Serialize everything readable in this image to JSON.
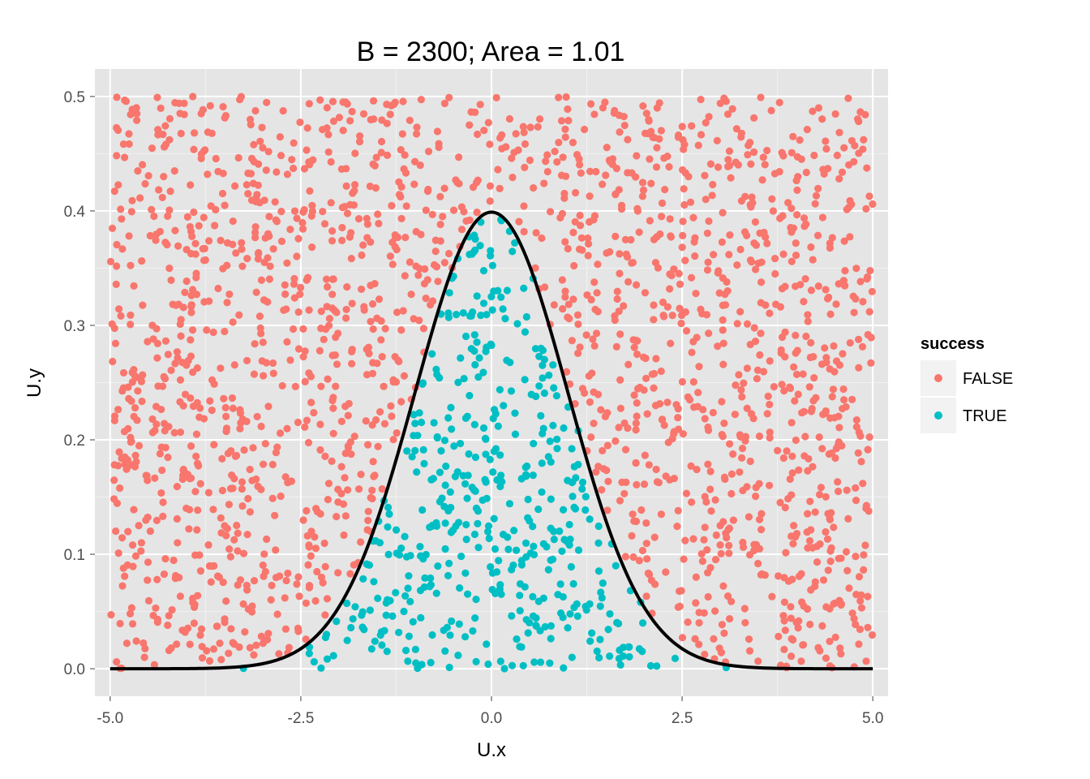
{
  "chart_data": {
    "type": "scatter",
    "title": "B = 2300; Area = 1.01",
    "xlabel": "U.x",
    "ylabel": "U.y",
    "xlim": [
      -5.2,
      5.2
    ],
    "ylim": [
      -0.024,
      0.524
    ],
    "x_ticks": [
      -5.0,
      -2.5,
      0.0,
      2.5,
      5.0
    ],
    "x_tick_labels": [
      "-5.0",
      "-2.5",
      "0.0",
      "2.5",
      "5.0"
    ],
    "y_ticks": [
      0.0,
      0.1,
      0.2,
      0.3,
      0.4,
      0.5
    ],
    "y_tick_labels": [
      "0.0",
      "0.1",
      "0.2",
      "0.3",
      "0.4",
      "0.5"
    ],
    "grid": true,
    "n_points": 2300,
    "uniform_x_range": [
      -5,
      5
    ],
    "uniform_y_range": [
      0,
      0.5
    ],
    "random_seed": 2300,
    "curve": {
      "name": "normal density",
      "mean": 0,
      "sd": 1,
      "x_range": [
        -5,
        5
      ],
      "color": "#000000"
    },
    "legend": {
      "title": "success",
      "position": "right",
      "entries": [
        {
          "label": "FALSE",
          "color": "#F8766D"
        },
        {
          "label": "TRUE",
          "color": "#00BFC4"
        }
      ]
    },
    "series": [
      {
        "name": "FALSE",
        "color": "#F8766D",
        "description": "points above the density curve"
      },
      {
        "name": "TRUE",
        "color": "#00BFC4",
        "description": "points below the density curve"
      }
    ],
    "colors": {
      "panel_bg": "#E5E5E5",
      "grid_major": "#FFFFFF",
      "grid_minor": "#F2F2F2",
      "legend_key_bg": "#F2F2F2"
    }
  }
}
